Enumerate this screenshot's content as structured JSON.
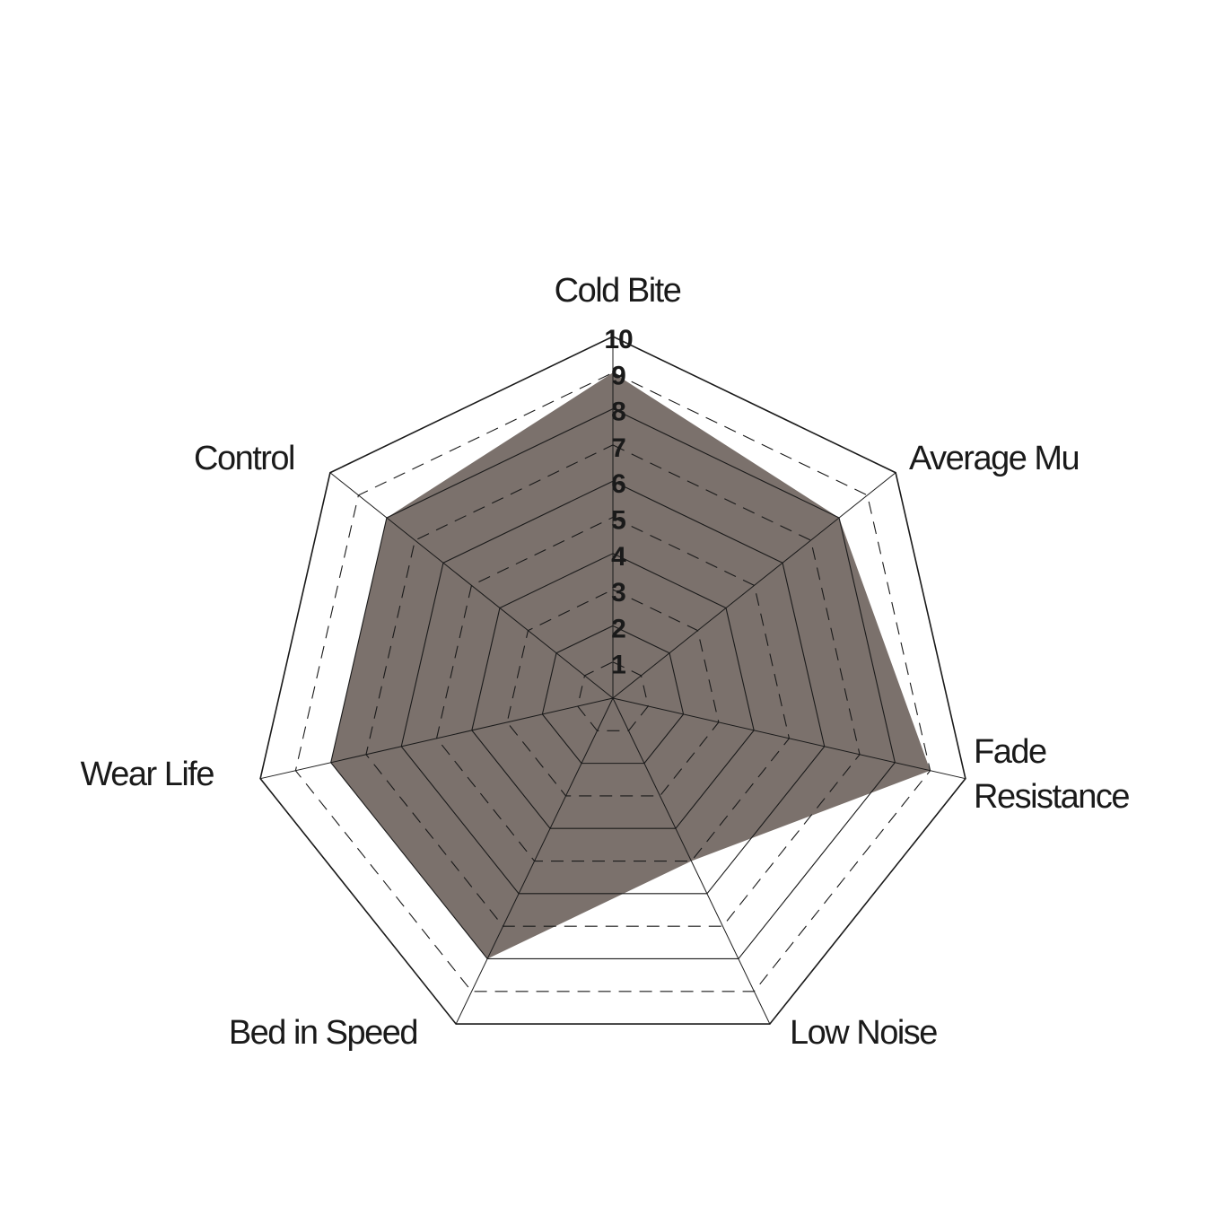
{
  "chart_data": {
    "type": "radar",
    "title": "",
    "axes": [
      "Cold Bite",
      "Average Mu",
      "Fade Resistance",
      "Low Noise",
      "Bed in Speed",
      "Wear Life",
      "Control"
    ],
    "values": [
      9,
      8,
      9,
      5,
      8,
      8,
      8
    ],
    "range": [
      0,
      10
    ],
    "tick_labels": [
      "1",
      "2",
      "3",
      "4",
      "5",
      "6",
      "7",
      "8",
      "9",
      "10"
    ],
    "grid": "alternating solid and dashed rings",
    "legend": "none",
    "colors": {
      "fill": "#7b716c",
      "grid": "#1a1a1a"
    }
  }
}
